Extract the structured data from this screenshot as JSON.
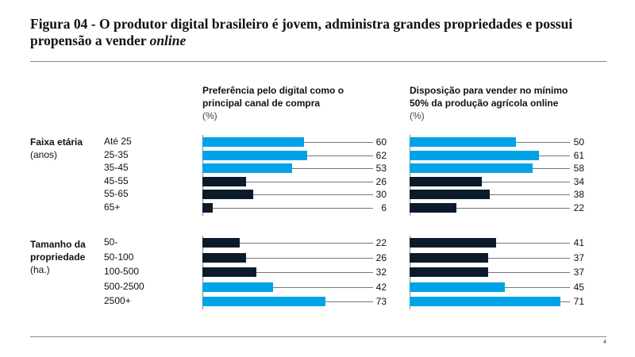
{
  "title": {
    "main": "Figura 04 - O produtor digital brasileiro é jovem, administra grandes propriedades e possui propensão a vender ",
    "italic": "online"
  },
  "page_number": "4",
  "colors": {
    "highlight": "#00a3e8",
    "base": "#0b1b2b"
  },
  "chart_data": [
    {
      "type": "bar",
      "title": "Preferência pelo digital como o principal canal de compra",
      "unit": "(%)",
      "groups": [
        {
          "label": "Faixa etária",
          "sublabel": "(anos)",
          "categories": [
            "Até 25",
            "25-35",
            "35-45",
            "45-55",
            "55-65",
            "65+"
          ],
          "values": [
            60,
            62,
            53,
            26,
            30,
            6
          ],
          "highlight": [
            true,
            true,
            true,
            false,
            false,
            false
          ]
        },
        {
          "label": "Tamanho da propriedade",
          "sublabel": "(ha.)",
          "categories": [
            "50-",
            "50-100",
            "100-500",
            "500-2500",
            "2500+"
          ],
          "values": [
            22,
            26,
            32,
            42,
            73
          ],
          "highlight": [
            false,
            false,
            false,
            true,
            true
          ]
        }
      ]
    },
    {
      "type": "bar",
      "title": "Disposição para vender no mínimo 50% da produção agrícola online",
      "unit": "(%)",
      "groups": [
        {
          "label": "Faixa etária",
          "sublabel": "(anos)",
          "categories": [
            "Até 25",
            "25-35",
            "35-45",
            "45-55",
            "55-65",
            "65+"
          ],
          "values": [
            50,
            61,
            58,
            34,
            38,
            22
          ],
          "highlight": [
            true,
            true,
            true,
            false,
            false,
            false
          ]
        },
        {
          "label": "Tamanho da propriedade",
          "sublabel": "(ha.)",
          "categories": [
            "50-",
            "50-100",
            "100-500",
            "500-2500",
            "2500+"
          ],
          "values": [
            41,
            37,
            37,
            45,
            71
          ],
          "highlight": [
            false,
            false,
            false,
            true,
            true
          ]
        }
      ]
    }
  ]
}
